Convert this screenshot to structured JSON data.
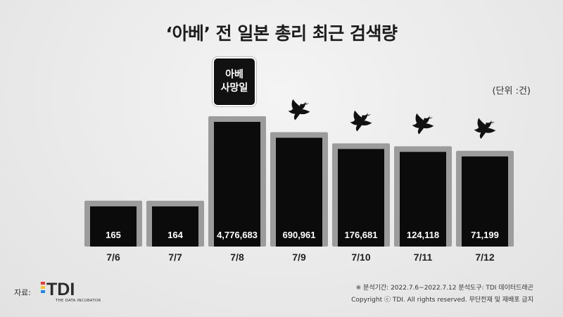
{
  "chart_data": {
    "type": "bar",
    "title": "‘아베’ 전 일본 총리 최근 검색량",
    "unit_label": "(단위 :건)",
    "categories": [
      "7/6",
      "7/7",
      "7/8",
      "7/9",
      "7/10",
      "7/11",
      "7/12"
    ],
    "values": [
      165,
      164,
      4776683,
      690961,
      176681,
      124118,
      71199
    ],
    "value_labels": [
      "165",
      "164",
      "4,776,683",
      "690,961",
      "176,681",
      "124,118",
      "71,199"
    ],
    "annotation": {
      "category": "7/8",
      "line1": "아베",
      "line2": "사망일"
    },
    "dove_categories": [
      "7/9",
      "7/10",
      "7/11",
      "7/12"
    ],
    "colors": {
      "bar": "#0b0b0b",
      "bar_border": "#9c9c9c",
      "value_text": "#ffffff"
    },
    "grid": false
  },
  "footer": {
    "source_label": "자료:",
    "logo_text": "TDI",
    "logo_subtitle": "THE DATA INCUBATOR",
    "line1": "※ 분석기간: 2022.7.6~2022.7.12   분석도구: TDI 데이터드래곤",
    "line2": "Copyright ⓒ TDI. All rights reserved. 무단전재 및 재배포 금지"
  }
}
